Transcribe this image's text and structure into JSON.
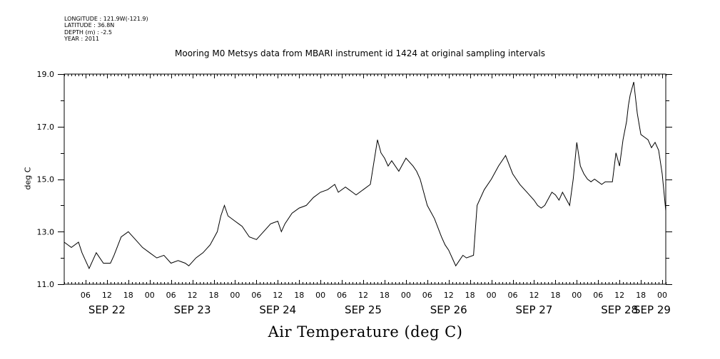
{
  "header": {
    "meta_lines": [
      "LONGITUDE : 121.9W(-121.9)",
      "LATITUDE : 36.8N",
      "DEPTH (m) : -2.5",
      "YEAR : 2011"
    ]
  },
  "chart_data": {
    "type": "line",
    "title": "Mooring M0 Metsys data from MBARI instrument id 1424 at original sampling intervals",
    "xlabel": "Air Temperature (deg C)",
    "ylabel": "deg C",
    "ylim": [
      11.0,
      19.0
    ],
    "y_ticks": [
      "11.0",
      "13.0",
      "15.0",
      "17.0",
      "19.0"
    ],
    "x_range_hours": [
      0,
      169
    ],
    "hour_ticks": [
      "06",
      "12",
      "18",
      "00",
      "06",
      "12",
      "18",
      "00",
      "06",
      "12",
      "18",
      "00",
      "06",
      "12",
      "18",
      "00",
      "06",
      "12",
      "18",
      "00",
      "06",
      "12",
      "18",
      "00",
      "06",
      "12",
      "18",
      "00"
    ],
    "day_labels": [
      "SEP 22",
      "SEP 23",
      "SEP 24",
      "SEP 25",
      "SEP 26",
      "SEP 27",
      "SEP 28",
      "SEP 29"
    ],
    "grid": false,
    "series": [
      {
        "name": "",
        "x": [
          0,
          2,
          4,
          5,
          7,
          8,
          9,
          11,
          13,
          14,
          16,
          18,
          20,
          22,
          24,
          26,
          28,
          30,
          32,
          34,
          35,
          37,
          39,
          41,
          43,
          44,
          45,
          46,
          48,
          49,
          50,
          52,
          54,
          56,
          58,
          60,
          61,
          62,
          64,
          66,
          68,
          70,
          72,
          74,
          76,
          77,
          79,
          80,
          81,
          82,
          84,
          86,
          88,
          89,
          90,
          91,
          92,
          94,
          96,
          98,
          99,
          100,
          102,
          104,
          106,
          107,
          108,
          110,
          111,
          112,
          113,
          115,
          116,
          118,
          120,
          122,
          124,
          126,
          128,
          130,
          132,
          133,
          134,
          135,
          137,
          138,
          139,
          140,
          142,
          143,
          144,
          145,
          146,
          147,
          148,
          149,
          150,
          151,
          152,
          154,
          155,
          156,
          157,
          158,
          158.5,
          159,
          160,
          161,
          162,
          163,
          164,
          165,
          166,
          167,
          168,
          169
        ],
        "values": [
          12.6,
          12.4,
          12.6,
          12.2,
          11.6,
          11.9,
          12.2,
          11.8,
          11.8,
          12.1,
          12.8,
          13.0,
          12.7,
          12.4,
          12.2,
          12.0,
          12.1,
          11.8,
          11.9,
          11.8,
          11.7,
          12.0,
          12.2,
          12.5,
          13.0,
          13.6,
          14.0,
          13.6,
          13.4,
          13.3,
          13.2,
          12.8,
          12.7,
          13.0,
          13.3,
          13.4,
          13.0,
          13.3,
          13.7,
          13.9,
          14.0,
          14.3,
          14.5,
          14.6,
          14.8,
          14.5,
          14.7,
          14.6,
          14.5,
          14.4,
          14.6,
          14.8,
          16.5,
          16.0,
          15.8,
          15.5,
          15.7,
          15.3,
          15.8,
          15.5,
          15.3,
          15.0,
          14.0,
          13.5,
          12.8,
          12.5,
          12.3,
          11.7,
          11.9,
          12.1,
          12.0,
          12.1,
          14.0,
          14.6,
          15.0,
          15.5,
          15.9,
          15.2,
          14.8,
          14.5,
          14.2,
          14.0,
          13.9,
          14.0,
          14.5,
          14.4,
          14.2,
          14.5,
          14.0,
          15.0,
          16.4,
          15.5,
          15.2,
          15.0,
          14.9,
          15.0,
          14.9,
          14.8,
          14.9,
          14.9,
          16.0,
          15.5,
          16.5,
          17.2,
          17.8,
          18.2,
          18.7,
          17.5,
          16.7,
          16.6,
          16.5,
          16.2,
          16.4,
          16.1,
          15.2,
          13.8
        ]
      }
    ]
  }
}
